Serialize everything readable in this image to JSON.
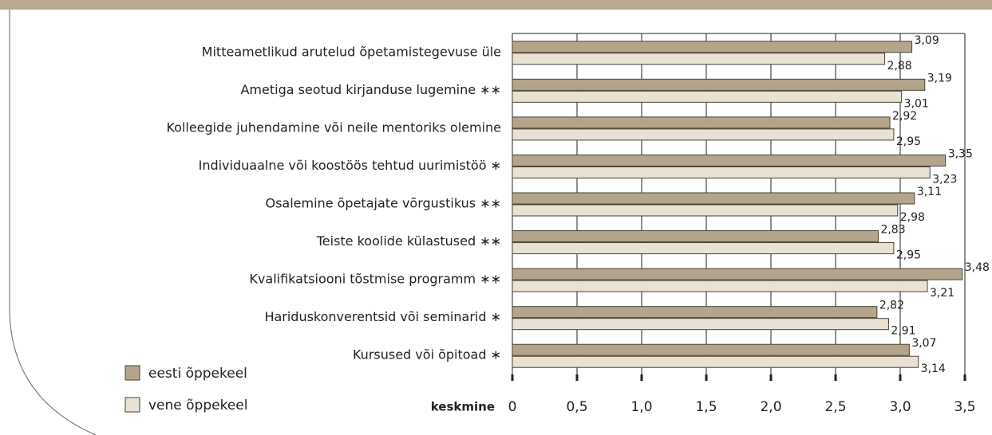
{
  "chart_data": {
    "type": "barh",
    "categories": [
      "Mitteametlikud arutelud õpetamistegevuse üle",
      "Ametiga seotud kirjanduse lugemine ∗∗",
      "Kolleegide juhendamine või neile mentoriks olemine",
      "Individuaalne või koostöös tehtud uurimistöö ∗",
      "Osalemine õpetajate võrgustikus ∗∗",
      "Teiste koolide külastused ∗∗",
      "Kvalifikatsiooni tõstmise programm ∗∗",
      "Hariduskonverentsid või seminarid ∗",
      "Kursused või õpitoad ∗"
    ],
    "series": [
      {
        "name": "eesti õppekeel",
        "color": "#b3a58c",
        "values": [
          3.09,
          3.19,
          2.92,
          3.35,
          3.11,
          2.83,
          3.48,
          2.82,
          3.07
        ],
        "value_labels": [
          "3,09",
          "3,19",
          "2,92",
          "3,35",
          "3,11",
          "2,83",
          "3,48",
          "2,82",
          "3,07"
        ]
      },
      {
        "name": "vene õppekeel",
        "color": "#e9e2d4",
        "values": [
          2.88,
          3.01,
          2.95,
          3.23,
          2.98,
          2.95,
          3.21,
          2.91,
          3.14
        ],
        "value_labels": [
          "2,88",
          "3,01",
          "2,95",
          "3,23",
          "2,98",
          "2,95",
          "3,21",
          "2,91",
          "3,14"
        ]
      }
    ],
    "x_label": "keskmine",
    "xlim": [
      0,
      3.5
    ],
    "xticks": [
      0,
      {
        "value": 0.5,
        "label": "0,5"
      },
      {
        "value": 1.0,
        "label": "1,0"
      },
      {
        "value": 1.5,
        "label": "1,5"
      },
      {
        "value": 2.0,
        "label": "2,0"
      },
      {
        "value": 2.5,
        "label": "2,5"
      },
      {
        "value": 3.0,
        "label": "3,0"
      },
      {
        "value": 3.5,
        "label": "3,5"
      }
    ],
    "grid": true
  }
}
